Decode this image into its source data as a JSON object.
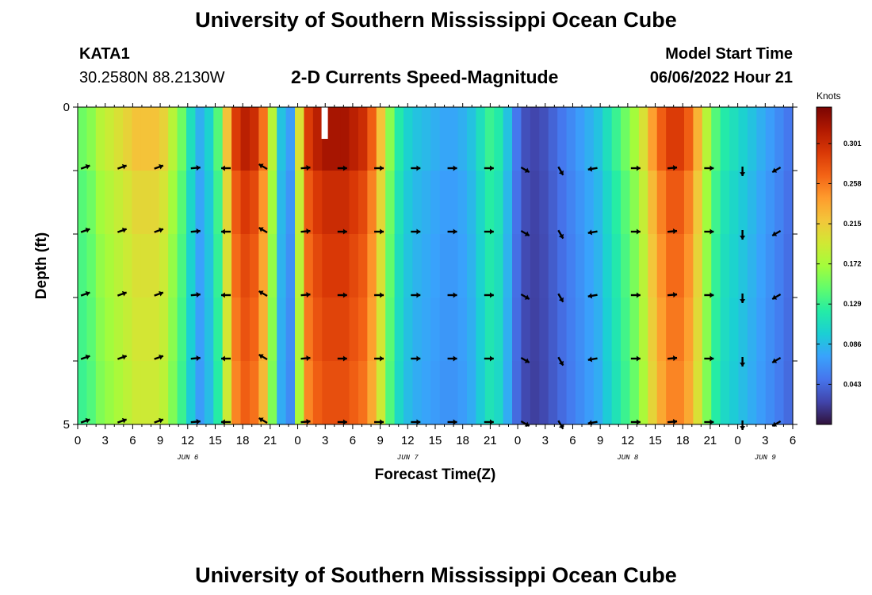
{
  "header": {
    "title": "University of Southern Mississippi Ocean Cube",
    "station": "KATA1",
    "coords": "30.2580N  88.2130W",
    "plot_title": "2-D Currents Speed-Magnitude",
    "model_start_label": "Model Start Time",
    "model_start_value": "06/06/2022 Hour 21"
  },
  "footer": {
    "title": "University of Southern Mississippi Ocean Cube"
  },
  "colors": {
    "scale": [
      "#30123b",
      "#4145ab",
      "#4675ed",
      "#39a2fc",
      "#1bcfd4",
      "#24eca6",
      "#61fc6c",
      "#a4fc3b",
      "#d1e834",
      "#f3c63a",
      "#fe9b2d",
      "#f36315",
      "#d93806",
      "#b11901",
      "#7a0403"
    ]
  },
  "chart_data": {
    "type": "heatmap",
    "title": "2-D Currents Speed-Magnitude",
    "xlabel": "Forecast Time(Z)",
    "ylabel": "Depth (ft)",
    "ylim": [
      0,
      5
    ],
    "y_ticks": [
      "0",
      "5"
    ],
    "x_ticks": [
      "0",
      "3",
      "6",
      "9",
      "12",
      "15",
      "18",
      "21",
      "0",
      "3",
      "6",
      "9",
      "12",
      "15",
      "18",
      "21",
      "0",
      "3",
      "6",
      "9",
      "12",
      "15",
      "18",
      "21",
      "0",
      "3",
      "6"
    ],
    "day_labels": [
      {
        "text": "JUN 6",
        "hour": 12
      },
      {
        "text": "JUN 7",
        "hour": 36
      },
      {
        "text": "JUN 8",
        "hour": 60
      },
      {
        "text": "JUN 9",
        "hour": 75
      }
    ],
    "colorbar": {
      "label": "Knots",
      "min": 0.0,
      "max": 0.34,
      "ticks": [
        "0.301",
        "0.258",
        "0.215",
        "0.172",
        "0.129",
        "0.086",
        "0.043"
      ]
    },
    "hours": [
      0,
      1,
      2,
      3,
      4,
      5,
      6,
      7,
      8,
      9,
      10,
      11,
      12,
      13,
      14,
      15,
      16,
      17,
      18,
      19,
      20,
      21,
      22,
      23,
      24,
      25,
      26,
      27,
      28,
      29,
      30,
      31,
      32,
      33,
      34,
      35,
      36,
      37,
      38,
      39,
      40,
      41,
      42,
      43,
      44,
      45,
      46,
      47,
      48,
      49,
      50,
      51,
      52,
      53,
      54,
      55,
      56,
      57,
      58,
      59,
      60,
      61,
      62,
      63,
      64,
      65,
      66,
      67,
      68,
      69,
      70,
      71,
      72,
      73,
      74,
      75,
      76,
      77,
      78
    ],
    "speed_knots": [
      0.15,
      0.16,
      0.18,
      0.19,
      0.2,
      0.21,
      0.22,
      0.22,
      0.22,
      0.21,
      0.18,
      0.15,
      0.11,
      0.08,
      0.1,
      0.14,
      0.22,
      0.29,
      0.31,
      0.3,
      0.26,
      0.18,
      0.09,
      0.07,
      0.2,
      0.29,
      0.31,
      0.32,
      0.32,
      0.32,
      0.31,
      0.3,
      0.27,
      0.22,
      0.16,
      0.12,
      0.1,
      0.09,
      0.085,
      0.08,
      0.075,
      0.075,
      0.08,
      0.09,
      0.11,
      0.13,
      0.12,
      0.09,
      0.05,
      0.03,
      0.025,
      0.03,
      0.04,
      0.05,
      0.06,
      0.07,
      0.08,
      0.09,
      0.11,
      0.13,
      0.15,
      0.17,
      0.2,
      0.24,
      0.27,
      0.29,
      0.29,
      0.27,
      0.23,
      0.18,
      0.14,
      0.12,
      0.11,
      0.1,
      0.09,
      0.08,
      0.07,
      0.06,
      0.05
    ],
    "depth_rows_ft": [
      0,
      0.5,
      1.5,
      2.5,
      3.5,
      4.5
    ],
    "row_factor": [
      1.0,
      0.97,
      0.94,
      0.91,
      0.89,
      0.87
    ],
    "vector_hours": [
      0,
      4,
      8,
      12,
      16,
      20,
      24,
      28,
      32,
      36,
      40,
      44,
      48,
      52,
      56,
      60,
      64,
      68,
      72,
      76
    ],
    "vector_depths_ft": [
      1,
      2,
      3,
      4,
      5
    ],
    "vector_angles_deg": [
      20,
      20,
      20,
      5,
      180,
      150,
      5,
      0,
      0,
      0,
      0,
      0,
      -30,
      -60,
      -170,
      0,
      5,
      0,
      -90,
      -150
    ]
  }
}
